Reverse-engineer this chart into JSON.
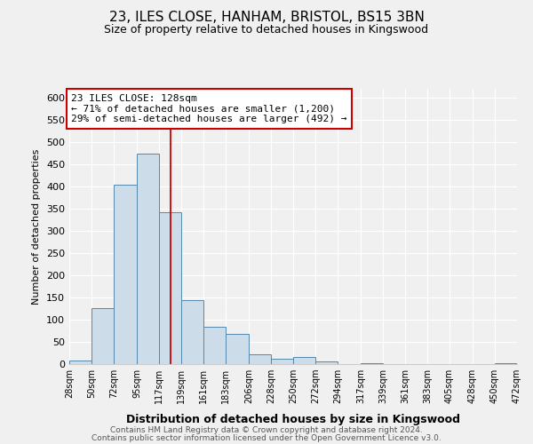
{
  "title": "23, ILES CLOSE, HANHAM, BRISTOL, BS15 3BN",
  "subtitle": "Size of property relative to detached houses in Kingswood",
  "xlabel": "Distribution of detached houses by size in Kingswood",
  "ylabel": "Number of detached properties",
  "bar_values": [
    8,
    127,
    405,
    474,
    342,
    145,
    85,
    68,
    22,
    12,
    17,
    6,
    1,
    2,
    1,
    1,
    0,
    0,
    0,
    2
  ],
  "bin_edges": [
    28,
    50,
    72,
    95,
    117,
    139,
    161,
    183,
    206,
    228,
    250,
    272,
    294,
    317,
    339,
    361,
    383,
    405,
    428,
    450,
    472
  ],
  "tick_labels": [
    "28sqm",
    "50sqm",
    "72sqm",
    "95sqm",
    "117sqm",
    "139sqm",
    "161sqm",
    "183sqm",
    "206sqm",
    "228sqm",
    "250sqm",
    "272sqm",
    "294sqm",
    "317sqm",
    "339sqm",
    "361sqm",
    "383sqm",
    "405sqm",
    "428sqm",
    "450sqm",
    "472sqm"
  ],
  "bar_color": "#ccdce8",
  "bar_edge_color": "#5588aa",
  "vline_x": 128,
  "vline_color": "#cc0000",
  "annotation_title": "23 ILES CLOSE: 128sqm",
  "annotation_line1": "← 71% of detached houses are smaller (1,200)",
  "annotation_line2": "29% of semi-detached houses are larger (492) →",
  "annotation_box_color": "#ffffff",
  "annotation_box_edge": "#cc0000",
  "ylim": [
    0,
    620
  ],
  "yticks": [
    0,
    50,
    100,
    150,
    200,
    250,
    300,
    350,
    400,
    450,
    500,
    550,
    600
  ],
  "footer1": "Contains HM Land Registry data © Crown copyright and database right 2024.",
  "footer2": "Contains public sector information licensed under the Open Government Licence v3.0.",
  "bg_color": "#f0f0f0",
  "plot_bg_color": "#f0f0f0",
  "grid_color": "#ffffff"
}
